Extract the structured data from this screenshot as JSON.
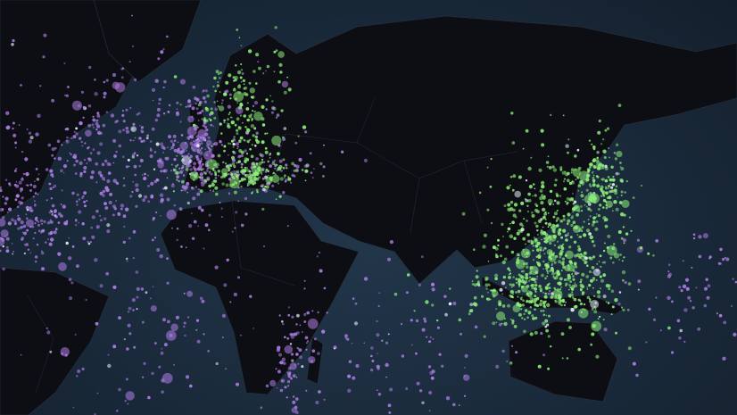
{
  "map": {
    "basemap": "dark",
    "colors": {
      "ocean": "#1a2a3b",
      "land": "#0c0e13",
      "purple": "#b07ee8",
      "green": "#8ef07a"
    },
    "point_clusters": [
      {
        "color": "purple",
        "lon": -27,
        "lat": 42,
        "spread_lon": 26,
        "spread_lat": 16,
        "count": 520
      },
      {
        "color": "purple",
        "lon": -4,
        "lat": 46,
        "spread_lon": 4,
        "spread_lat": 7,
        "count": 140
      },
      {
        "color": "purple",
        "lon": -62,
        "lat": 22,
        "spread_lon": 10,
        "spread_lat": 9,
        "count": 170
      },
      {
        "color": "purple",
        "lon": -20,
        "lat": -22,
        "spread_lon": 20,
        "spread_lat": 16,
        "count": 110
      },
      {
        "color": "purple",
        "lon": 65,
        "lat": -20,
        "spread_lon": 25,
        "spread_lat": 15,
        "count": 130
      },
      {
        "color": "purple",
        "lon": 30,
        "lat": -24,
        "spread_lon": 3,
        "spread_lat": 10,
        "count": 70
      },
      {
        "color": "purple",
        "lon": 168,
        "lat": 0,
        "spread_lon": 15,
        "spread_lat": 14,
        "count": 80
      },
      {
        "color": "purple",
        "lon": 22,
        "lat": 38,
        "spread_lon": 10,
        "spread_lat": 3,
        "count": 60
      },
      {
        "color": "green",
        "lon": 14,
        "lat": 56,
        "spread_lon": 8,
        "spread_lat": 11,
        "count": 200
      },
      {
        "color": "green",
        "lon": 14,
        "lat": 36,
        "spread_lon": 10,
        "spread_lat": 3,
        "count": 160
      },
      {
        "color": "green",
        "lon": 123,
        "lat": 15,
        "spread_lon": 12,
        "spread_lat": 15,
        "count": 620
      },
      {
        "color": "green",
        "lon": 138,
        "lat": 36,
        "spread_lon": 4,
        "spread_lat": 6,
        "count": 110
      },
      {
        "color": "green",
        "lon": 115,
        "lat": -3,
        "spread_lon": 15,
        "spread_lat": 5,
        "count": 210
      }
    ]
  }
}
